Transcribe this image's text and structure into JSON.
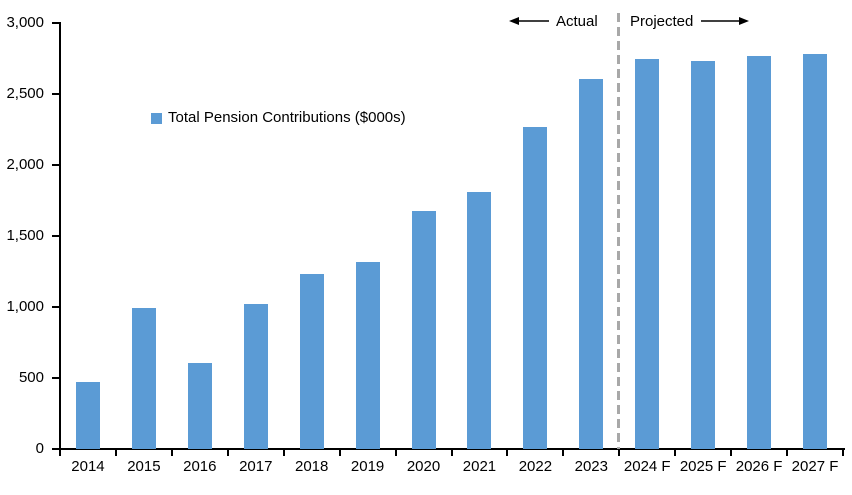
{
  "chart_data": {
    "type": "bar",
    "title": "",
    "series_name": "Total Pension Contributions ($000s)",
    "categories": [
      "2014",
      "2015",
      "2016",
      "2017",
      "2018",
      "2019",
      "2020",
      "2021",
      "2022",
      "2023",
      "2024 F",
      "2025 F",
      "2026 F",
      "2027 F"
    ],
    "values": [
      470,
      990,
      605,
      1020,
      1230,
      1315,
      1675,
      1810,
      2270,
      2605,
      2745,
      2735,
      2765,
      2785
    ],
    "ylim": [
      0,
      3000
    ],
    "ytick_step": 500,
    "ytick_labels": [
      "0",
      "500",
      "1,000",
      "1,500",
      "2,000",
      "2,500",
      "3,000"
    ],
    "grid": false,
    "legend_position": "inside-upper-left",
    "bar_color": "#5B9BD5",
    "annotations": {
      "actual_label": "Actual",
      "projected_label": "Projected",
      "divider_between": [
        "2023",
        "2024 F"
      ]
    }
  },
  "legend": {
    "label": "Total Pension Contributions ($000s)",
    "marker_color": "#5B9BD5"
  },
  "annotation": {
    "actual": "Actual",
    "projected": "Projected"
  },
  "colors": {
    "bar": "#5B9BD5",
    "divider": "#A8A8A8",
    "axis": "#000000",
    "text": "#000000"
  }
}
